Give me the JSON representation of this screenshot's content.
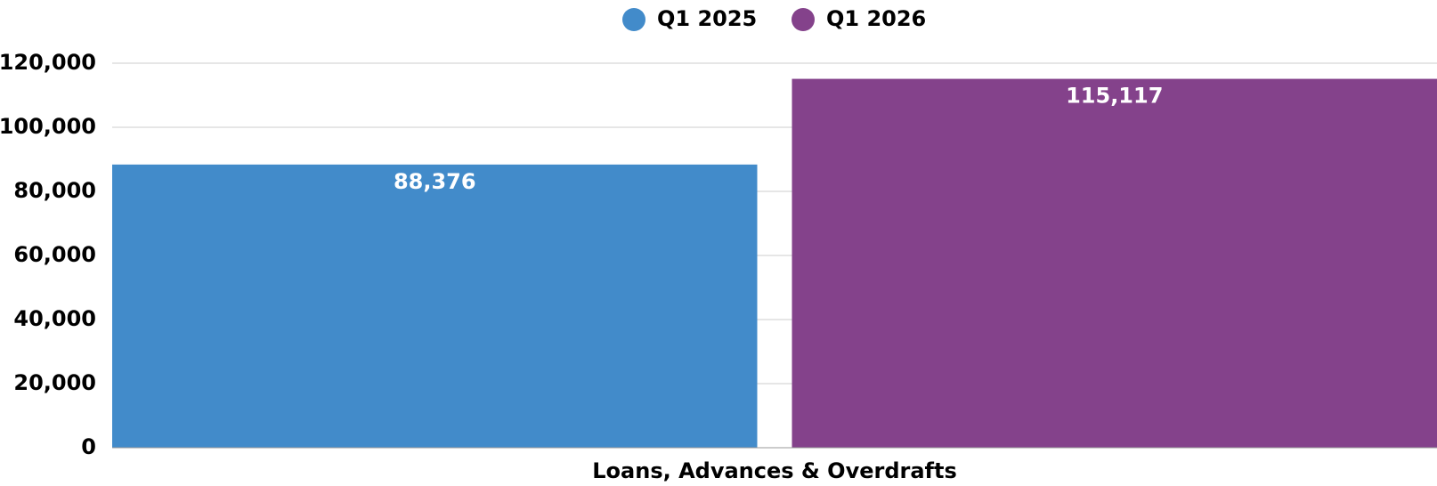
{
  "chart_data": {
    "type": "bar",
    "categories": [
      "Loans, Advances & Overdrafts"
    ],
    "series": [
      {
        "name": "Q1 2025",
        "color": "#428bca",
        "values": [
          88376
        ],
        "value_labels": [
          "88,376"
        ]
      },
      {
        "name": "Q1 2026",
        "color": "#84428b",
        "values": [
          115117
        ],
        "value_labels": [
          "115,117"
        ]
      }
    ],
    "ylim": [
      0,
      120000
    ],
    "yticks": [
      0,
      {
        "value": 20000,
        "label": "20,000"
      },
      {
        "value": 40000,
        "label": "40,000"
      },
      {
        "value": 60000,
        "label": "60,000"
      },
      {
        "value": 80000,
        "label": "80,000"
      },
      {
        "value": 100000,
        "label": "100,000"
      },
      {
        "value": 120000,
        "label": "120,000"
      }
    ],
    "grid": true,
    "legend": "top"
  }
}
